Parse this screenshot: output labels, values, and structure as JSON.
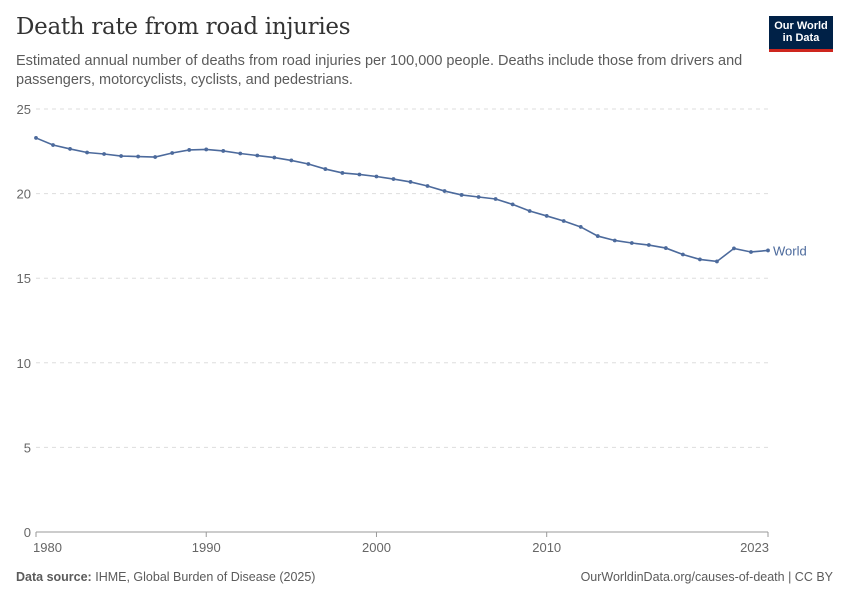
{
  "header": {
    "title": "Death rate from road injuries",
    "subtitle": "Estimated annual number of deaths from road injuries per 100,000 people. Deaths include those from drivers and passengers, motorcyclists, cyclists, and pedestrians.",
    "logo": "Our World in Data"
  },
  "footer": {
    "source_label": "Data source:",
    "source": "IHME, Global Burden of Disease (2025)",
    "link": "OurWorldinData.org/causes-of-death | CC BY"
  },
  "chart_data": {
    "type": "line",
    "title": "Death rate from road injuries",
    "xlabel": "",
    "ylabel": "",
    "ylim": [
      0,
      25
    ],
    "xlim": [
      1980,
      2023
    ],
    "y_ticks": [
      0,
      5,
      10,
      15,
      20,
      25
    ],
    "x_ticks": [
      1980,
      1990,
      2000,
      2010,
      2023
    ],
    "grid": "horizontal dashed",
    "legend": "inline-right",
    "series": [
      {
        "name": "World",
        "color": "#4c6a9c",
        "x": [
          1980,
          1981,
          1982,
          1983,
          1984,
          1985,
          1986,
          1987,
          1988,
          1989,
          1990,
          1991,
          1992,
          1993,
          1994,
          1995,
          1996,
          1997,
          1998,
          1999,
          2000,
          2001,
          2002,
          2003,
          2004,
          2005,
          2006,
          2007,
          2008,
          2009,
          2010,
          2011,
          2012,
          2013,
          2014,
          2015,
          2016,
          2017,
          2018,
          2019,
          2020,
          2021,
          2022,
          2023
        ],
        "values": [
          23.29,
          22.87,
          22.64,
          22.43,
          22.34,
          22.22,
          22.19,
          22.16,
          22.4,
          22.58,
          22.61,
          22.52,
          22.37,
          22.25,
          22.13,
          21.96,
          21.75,
          21.45,
          21.22,
          21.13,
          21.01,
          20.86,
          20.69,
          20.45,
          20.15,
          19.92,
          19.8,
          19.68,
          19.36,
          18.97,
          18.68,
          18.38,
          18.03,
          17.49,
          17.23,
          17.08,
          16.96,
          16.78,
          16.4,
          16.11,
          15.99,
          16.76,
          16.55,
          16.64
        ]
      }
    ]
  }
}
